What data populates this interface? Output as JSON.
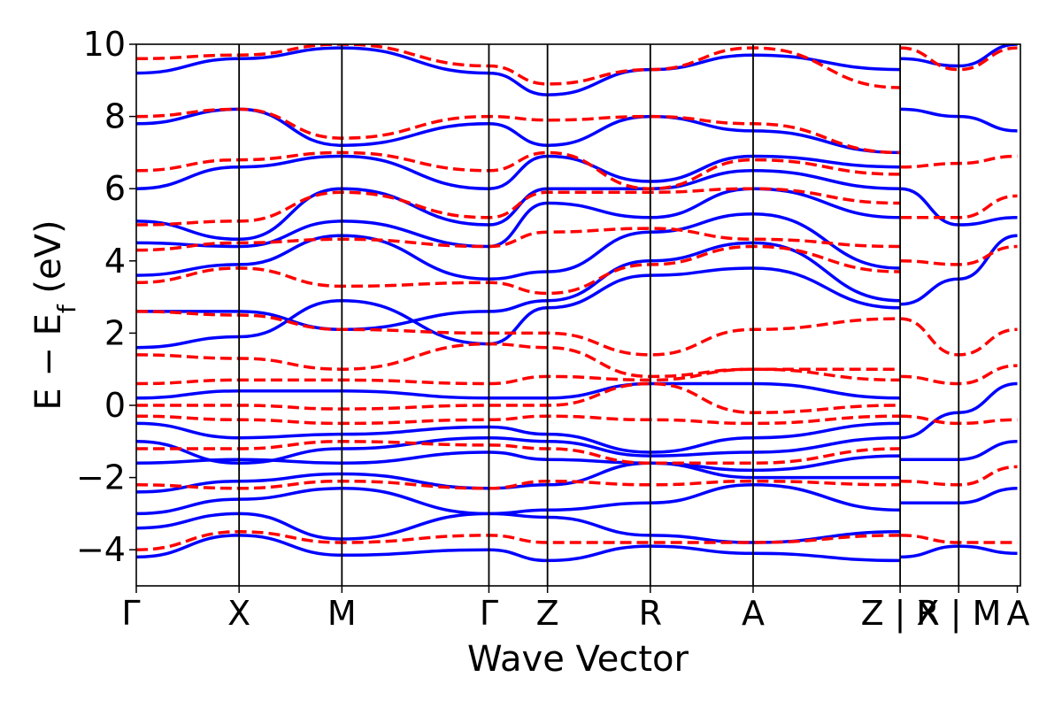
{
  "chart_data": {
    "type": "line",
    "xlabel": "Wave Vector",
    "ylabel": "E − E",
    "ylabel_sub": "f",
    "ylabel_unit": " (eV)",
    "ylim": [
      -5,
      10
    ],
    "yticks": [
      -4,
      -2,
      0,
      2,
      4,
      6,
      8,
      10
    ],
    "ytick_labels": [
      "−4",
      "−2",
      "0",
      "2",
      "4",
      "6",
      "8",
      "10"
    ],
    "xlim": [
      0,
      8.6
    ],
    "kpoints": [
      {
        "label": "Γ",
        "x": 0.0
      },
      {
        "label": "X",
        "x": 1.0
      },
      {
        "label": "M",
        "x": 2.0
      },
      {
        "label": "Γ",
        "x": 3.43
      },
      {
        "label": "Z",
        "x": 4.0
      },
      {
        "label": "R",
        "x": 5.0
      },
      {
        "label": "A",
        "x": 6.0
      },
      {
        "label": "Z | X",
        "x": 7.43
      },
      {
        "label": "R | M",
        "x": 8.0
      },
      {
        "label": "A",
        "x": 8.57
      }
    ],
    "series_styles": [
      {
        "color": "#0000ff",
        "dash": "solid"
      },
      {
        "color": "#ff0000",
        "dash": "dashed"
      }
    ],
    "series": [
      {
        "style": 0,
        "x": [
          0,
          1,
          2,
          3.43,
          4,
          5,
          6,
          7.43
        ],
        "values": [
          -4.2,
          -3.6,
          -4.15,
          -4.0,
          -4.3,
          -3.9,
          -4.1,
          -4.3
        ]
      },
      {
        "style": 0,
        "x": [
          0,
          1,
          2,
          3.43,
          4,
          5,
          6,
          7.43
        ],
        "values": [
          -3.4,
          -3.0,
          -3.7,
          -3.0,
          -3.1,
          -3.6,
          -3.8,
          -3.5
        ]
      },
      {
        "style": 0,
        "x": [
          0,
          1,
          2,
          3.43,
          4,
          5,
          6,
          7.43
        ],
        "values": [
          -3.0,
          -2.6,
          -2.3,
          -3.0,
          -2.9,
          -2.7,
          -2.2,
          -2.9
        ]
      },
      {
        "style": 0,
        "x": [
          0,
          1,
          2,
          3.43,
          4,
          5,
          6,
          7.43
        ],
        "values": [
          -2.4,
          -2.1,
          -1.9,
          -2.3,
          -2.2,
          -1.6,
          -2.0,
          -2.0
        ]
      },
      {
        "style": 0,
        "x": [
          0,
          1,
          2,
          3.43,
          4,
          5,
          6,
          7.43
        ],
        "values": [
          -1.6,
          -1.5,
          -1.6,
          -1.3,
          -1.5,
          -1.6,
          -1.8,
          -1.4
        ]
      },
      {
        "style": 0,
        "x": [
          0,
          1,
          2,
          3.43,
          4,
          5,
          6,
          7.43
        ],
        "values": [
          -1.0,
          -1.6,
          -1.2,
          -0.9,
          -1.0,
          -1.4,
          -1.3,
          -0.9
        ]
      },
      {
        "style": 0,
        "x": [
          0,
          1,
          2,
          3.43,
          4,
          5,
          6,
          7.43
        ],
        "values": [
          -0.5,
          -0.9,
          -0.8,
          -0.6,
          -0.8,
          -1.3,
          -0.9,
          -0.5
        ]
      },
      {
        "style": 0,
        "x": [
          0,
          1,
          2,
          3.43,
          4,
          5,
          6,
          7.43
        ],
        "values": [
          0.2,
          0.4,
          0.4,
          0.2,
          0.2,
          0.6,
          0.6,
          0.2
        ]
      },
      {
        "style": 0,
        "x": [
          0,
          1,
          2,
          3.43,
          4,
          5,
          6,
          7.43
        ],
        "values": [
          1.6,
          1.9,
          2.9,
          1.7,
          2.7,
          3.6,
          3.8,
          2.7
        ]
      },
      {
        "style": 0,
        "x": [
          0,
          1,
          2,
          3.43,
          4,
          5,
          6,
          7.43
        ],
        "values": [
          2.6,
          2.6,
          2.1,
          2.6,
          2.9,
          4.0,
          4.5,
          2.9
        ]
      },
      {
        "style": 0,
        "x": [
          0,
          1,
          2,
          3.43,
          4,
          5,
          6,
          7.43
        ],
        "values": [
          3.6,
          3.9,
          4.7,
          3.5,
          3.7,
          4.8,
          5.3,
          3.8
        ]
      },
      {
        "style": 0,
        "x": [
          0,
          1,
          2,
          3.43,
          4,
          5,
          6,
          7.43
        ],
        "values": [
          4.5,
          4.4,
          5.1,
          4.4,
          5.6,
          5.2,
          6.0,
          5.2
        ]
      },
      {
        "style": 0,
        "x": [
          0,
          1,
          2,
          3.43,
          4,
          5,
          6,
          7.43
        ],
        "values": [
          5.1,
          4.6,
          6.0,
          5.0,
          6.0,
          6.0,
          6.5,
          6.0
        ]
      },
      {
        "style": 0,
        "x": [
          0,
          1,
          2,
          3.43,
          4,
          5,
          6,
          7.43
        ],
        "values": [
          6.0,
          6.6,
          6.9,
          6.0,
          6.9,
          6.2,
          6.9,
          6.6
        ]
      },
      {
        "style": 0,
        "x": [
          0,
          1,
          2,
          3.43,
          4,
          5,
          6,
          7.43
        ],
        "values": [
          7.8,
          8.2,
          7.2,
          7.8,
          7.2,
          8.0,
          7.6,
          7.0
        ]
      },
      {
        "style": 0,
        "x": [
          0,
          1,
          2,
          3.43,
          4,
          5,
          6,
          7.43
        ],
        "values": [
          9.2,
          9.6,
          9.9,
          9.2,
          8.6,
          9.3,
          9.7,
          9.3
        ]
      },
      {
        "style": 0,
        "x": [
          7.43,
          8.0,
          8.57
        ],
        "values": [
          -4.2,
          -3.9,
          -4.1
        ]
      },
      {
        "style": 0,
        "x": [
          7.43,
          8.0,
          8.57
        ],
        "values": [
          -2.7,
          -2.7,
          -2.3
        ]
      },
      {
        "style": 0,
        "x": [
          7.43,
          8.0,
          8.57
        ],
        "values": [
          -1.5,
          -1.5,
          -1.0
        ]
      },
      {
        "style": 0,
        "x": [
          7.43,
          8.0,
          8.57
        ],
        "values": [
          -0.9,
          -0.2,
          0.6
        ]
      },
      {
        "style": 0,
        "x": [
          7.43,
          8.0,
          8.57
        ],
        "values": [
          2.8,
          3.5,
          4.7
        ]
      },
      {
        "style": 0,
        "x": [
          7.43,
          8.0,
          8.57
        ],
        "values": [
          6.0,
          5.0,
          5.2
        ]
      },
      {
        "style": 0,
        "x": [
          7.43,
          8.0,
          8.57
        ],
        "values": [
          8.2,
          8.0,
          7.6
        ]
      },
      {
        "style": 0,
        "x": [
          7.43,
          8.0,
          8.57
        ],
        "values": [
          9.6,
          9.4,
          10.0
        ]
      },
      {
        "style": 1,
        "x": [
          0,
          1,
          2,
          3.43,
          4,
          5,
          6,
          7.43
        ],
        "values": [
          -4.0,
          -3.5,
          -3.8,
          -3.6,
          -3.8,
          -3.8,
          -3.8,
          -3.6
        ]
      },
      {
        "style": 1,
        "x": [
          0,
          1,
          2,
          3.43,
          4,
          5,
          6,
          7.43
        ],
        "values": [
          -2.2,
          -2.3,
          -2.1,
          -2.3,
          -2.1,
          -2.2,
          -2.1,
          -2.2
        ]
      },
      {
        "style": 1,
        "x": [
          0,
          1,
          2,
          3.43,
          4,
          5,
          6,
          7.43
        ],
        "values": [
          -1.2,
          -1.2,
          -1.0,
          -1.1,
          -1.2,
          -1.6,
          -1.6,
          -1.2
        ]
      },
      {
        "style": 1,
        "x": [
          0,
          1,
          2,
          3.43,
          4,
          5,
          6,
          7.43
        ],
        "values": [
          -0.3,
          -0.4,
          -0.5,
          -0.4,
          -0.3,
          -0.4,
          -0.5,
          -0.3
        ]
      },
      {
        "style": 1,
        "x": [
          0,
          1,
          2,
          3.43,
          4,
          5,
          6,
          7.43
        ],
        "values": [
          0.0,
          0.0,
          -0.1,
          0.0,
          0.0,
          0.6,
          -0.2,
          0.0
        ]
      },
      {
        "style": 1,
        "x": [
          0,
          1,
          2,
          3.43,
          4,
          5,
          6,
          7.43
        ],
        "values": [
          0.6,
          0.7,
          0.7,
          0.6,
          0.8,
          0.7,
          1.0,
          0.7
        ]
      },
      {
        "style": 1,
        "x": [
          0,
          1,
          2,
          3.43,
          4,
          5,
          6,
          7.43
        ],
        "values": [
          1.4,
          1.3,
          1.0,
          1.7,
          1.6,
          0.8,
          1.0,
          1.0
        ]
      },
      {
        "style": 1,
        "x": [
          0,
          1,
          2,
          3.43,
          4,
          5,
          6,
          7.43
        ],
        "values": [
          2.6,
          2.5,
          2.1,
          2.0,
          2.0,
          1.4,
          2.1,
          2.4
        ]
      },
      {
        "style": 1,
        "x": [
          0,
          1,
          2,
          3.43,
          4,
          5,
          6,
          7.43
        ],
        "values": [
          3.4,
          3.8,
          3.3,
          3.4,
          3.1,
          3.9,
          4.4,
          3.7
        ]
      },
      {
        "style": 1,
        "x": [
          0,
          1,
          2,
          3.43,
          4,
          5,
          6,
          7.43
        ],
        "values": [
          4.3,
          4.5,
          4.6,
          4.4,
          4.8,
          4.9,
          4.6,
          4.4
        ]
      },
      {
        "style": 1,
        "x": [
          0,
          1,
          2,
          3.43,
          4,
          5,
          6,
          7.43
        ],
        "values": [
          5.0,
          5.1,
          5.9,
          5.2,
          5.9,
          5.9,
          6.0,
          5.6
        ]
      },
      {
        "style": 1,
        "x": [
          0,
          1,
          2,
          3.43,
          4,
          5,
          6,
          7.43
        ],
        "values": [
          6.5,
          6.8,
          7.0,
          6.5,
          7.0,
          6.0,
          6.8,
          6.4
        ]
      },
      {
        "style": 1,
        "x": [
          0,
          1,
          2,
          3.43,
          4,
          5,
          6,
          7.43
        ],
        "values": [
          8.0,
          8.2,
          7.4,
          8.0,
          7.9,
          8.0,
          7.8,
          7.0
        ]
      },
      {
        "style": 1,
        "x": [
          0,
          1,
          2,
          3.43,
          4,
          5,
          6,
          7.43
        ],
        "values": [
          9.6,
          9.7,
          10.0,
          9.4,
          8.9,
          9.3,
          9.9,
          8.8
        ]
      },
      {
        "style": 1,
        "x": [
          7.43,
          8.0,
          8.57
        ],
        "values": [
          -3.6,
          -3.8,
          -3.8
        ]
      },
      {
        "style": 1,
        "x": [
          7.43,
          8.0,
          8.57
        ],
        "values": [
          -2.1,
          -2.2,
          -1.7
        ]
      },
      {
        "style": 1,
        "x": [
          7.43,
          8.0,
          8.57
        ],
        "values": [
          -0.3,
          -0.5,
          -0.4
        ]
      },
      {
        "style": 1,
        "x": [
          7.43,
          8.0,
          8.57
        ],
        "values": [
          0.8,
          0.6,
          1.1
        ]
      },
      {
        "style": 1,
        "x": [
          7.43,
          8.0,
          8.57
        ],
        "values": [
          2.4,
          1.4,
          2.1
        ]
      },
      {
        "style": 1,
        "x": [
          7.43,
          8.0,
          8.57
        ],
        "values": [
          4.0,
          3.9,
          4.4
        ]
      },
      {
        "style": 1,
        "x": [
          7.43,
          8.0,
          8.57
        ],
        "values": [
          5.2,
          5.2,
          5.8
        ]
      },
      {
        "style": 1,
        "x": [
          7.43,
          8.0,
          8.57
        ],
        "values": [
          6.6,
          6.7,
          6.9
        ]
      },
      {
        "style": 1,
        "x": [
          7.43,
          8.0,
          8.57
        ],
        "values": [
          9.9,
          9.3,
          9.9
        ]
      }
    ]
  }
}
